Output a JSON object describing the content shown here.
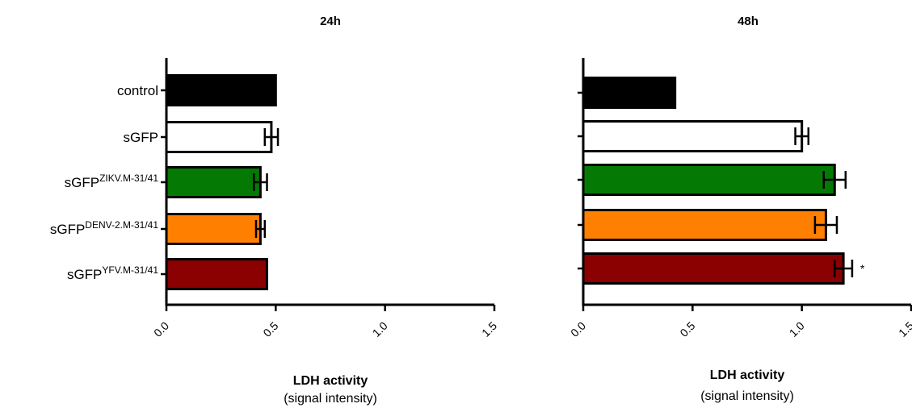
{
  "chart_data": [
    {
      "type": "bar",
      "orientation": "horizontal",
      "title": "24h",
      "xlabel": "LDH activity",
      "xlabel_sub": "(signal intensity)",
      "xlim": [
        0,
        1.5
      ],
      "xticks": [
        "0.0",
        "0.5",
        "1.0",
        "1.5"
      ],
      "categories": [
        {
          "base": "sGFP",
          "sup": "YFV.M-31/41"
        },
        {
          "base": "sGFP",
          "sup": "DENV-2.M-31/41"
        },
        {
          "base": "sGFP",
          "sup": "ZIKV.M-31/41"
        },
        {
          "base": "sGFP",
          "sup": ""
        },
        {
          "base": "control",
          "sup": ""
        }
      ],
      "values": [
        0.46,
        0.43,
        0.43,
        0.48,
        0.5
      ],
      "errors": [
        0.0,
        0.02,
        0.03,
        0.03,
        0.0
      ],
      "colors": [
        "#8b0000",
        "#ff8000",
        "#047a04",
        "#ffffff",
        "#000000"
      ],
      "annotations": [
        "",
        "",
        "",
        "",
        ""
      ],
      "show_category_labels": true
    },
    {
      "type": "bar",
      "orientation": "horizontal",
      "title": "48h",
      "xlabel": "LDH activity",
      "xlabel_sub": "(signal intensity)",
      "xlim": [
        0,
        1.5
      ],
      "xticks": [
        "0.0",
        "0.5",
        "1.0",
        "1.5"
      ],
      "categories": [
        {
          "base": "sGFP",
          "sup": "YFV.M-31/41"
        },
        {
          "base": "sGFP",
          "sup": "DENV-2.M-31/41"
        },
        {
          "base": "sGFP",
          "sup": "ZIKV.M-31/41"
        },
        {
          "base": "sGFP",
          "sup": ""
        },
        {
          "base": "control",
          "sup": ""
        }
      ],
      "values": [
        1.19,
        1.11,
        1.15,
        1.0,
        0.42
      ],
      "errors": [
        0.04,
        0.05,
        0.05,
        0.03,
        0.0
      ],
      "colors": [
        "#8b0000",
        "#ff8000",
        "#047a04",
        "#ffffff",
        "#000000"
      ],
      "annotations": [
        "*",
        "",
        "",
        "",
        ""
      ],
      "show_category_labels": false
    }
  ]
}
